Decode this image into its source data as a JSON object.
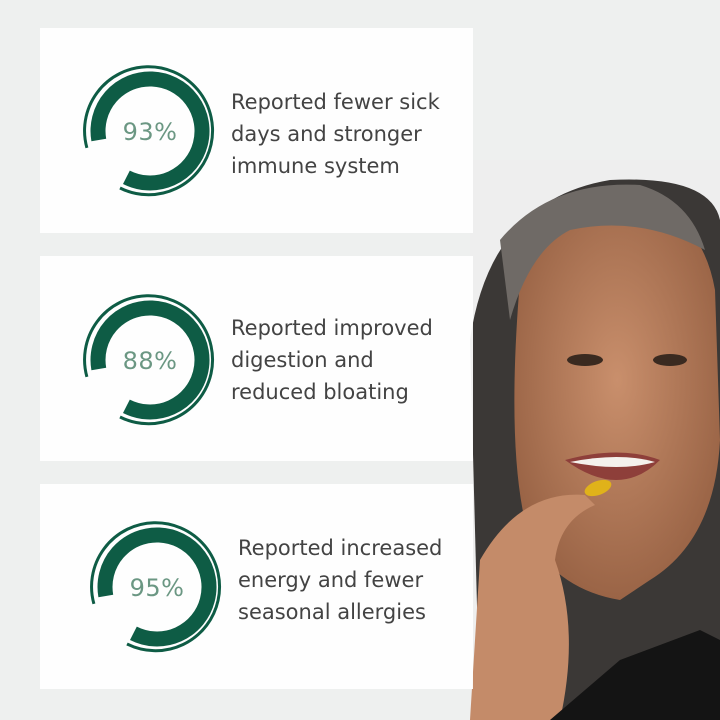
{
  "brand_color": "#0e5c45",
  "percent_color": "#6b9783",
  "stats": [
    {
      "percent": "93%",
      "value": 93,
      "lines": [
        "Reported fewer sick",
        "days and stronger",
        "immune system"
      ]
    },
    {
      "percent": "88%",
      "value": 88,
      "lines": [
        "Reported improved",
        "digestion and",
        "reduced bloating"
      ]
    },
    {
      "percent": "95%",
      "value": 95,
      "lines": [
        "Reported increased",
        "energy and fewer",
        "seasonal allergies"
      ]
    }
  ]
}
